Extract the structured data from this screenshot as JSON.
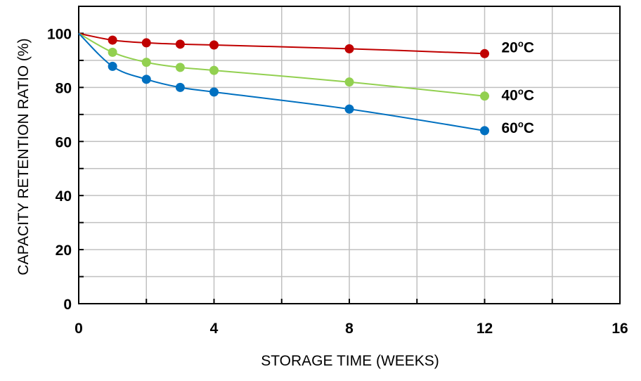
{
  "chart_data": {
    "type": "line",
    "title": "",
    "xlabel": "STORAGE TIME (WEEKS)",
    "ylabel": "CAPACITY RETENTION RATIO (%)",
    "xlim": [
      0,
      16
    ],
    "ylim": [
      0,
      110
    ],
    "x_ticks": [
      0,
      4,
      8,
      12,
      16
    ],
    "y_ticks": [
      0,
      20,
      40,
      60,
      80,
      100
    ],
    "grid": true,
    "series": [
      {
        "name": "20°C",
        "label_main": "20",
        "label_sup": "o",
        "label_unit": "C",
        "color": "#c00000",
        "x": [
          0,
          1,
          2,
          3,
          4,
          8,
          12
        ],
        "y": [
          100,
          97.5,
          96.5,
          96,
          95.7,
          94.3,
          92.5
        ]
      },
      {
        "name": "40°C",
        "label_main": "40",
        "label_sup": "o",
        "label_unit": "C",
        "color": "#92d050",
        "x": [
          0,
          1,
          2,
          3,
          4,
          8,
          12
        ],
        "y": [
          100,
          93,
          89.3,
          87.4,
          86.3,
          82,
          76.8
        ]
      },
      {
        "name": "60°C",
        "label_main": "60",
        "label_sup": "o",
        "label_unit": "C",
        "color": "#0070c0",
        "x": [
          0,
          1,
          2,
          3,
          4,
          8,
          12
        ],
        "y": [
          100,
          87.8,
          83,
          80,
          78.3,
          72,
          64
        ]
      }
    ]
  }
}
